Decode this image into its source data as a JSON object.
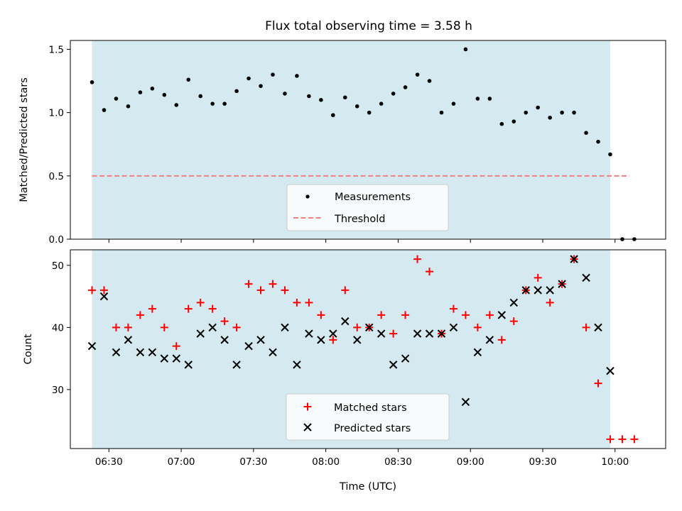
{
  "title": "Flux total observing time = 3.58 h",
  "xlabel": "Time (UTC)",
  "colors": {
    "observing_band": "#d4eaf0",
    "measurement": "#000000",
    "threshold": "#f08080",
    "matched": "#ff0000",
    "predicted": "#000000"
  },
  "chart_data": [
    {
      "type": "scatter",
      "ylabel": "Matched/Predicted stars",
      "xlim": [
        "06:14",
        "10:21"
      ],
      "ylim": [
        0,
        1.57
      ],
      "yticks": [
        0.0,
        0.5,
        1.0,
        1.5
      ],
      "ytick_labels": [
        "0.0",
        "0.5",
        "1.0",
        "1.5"
      ],
      "grid": false,
      "legend_position": "lower-center",
      "observing_window": [
        "06:23",
        "09:58"
      ],
      "series": [
        {
          "name": "Measurements",
          "marker": "dot",
          "x": [
            "06:23",
            "06:28",
            "06:33",
            "06:38",
            "06:43",
            "06:48",
            "06:53",
            "06:58",
            "07:03",
            "07:08",
            "07:13",
            "07:18",
            "07:23",
            "07:28",
            "07:33",
            "07:38",
            "07:43",
            "07:48",
            "07:53",
            "07:58",
            "08:03",
            "08:08",
            "08:13",
            "08:18",
            "08:23",
            "08:28",
            "08:33",
            "08:38",
            "08:43",
            "08:48",
            "08:53",
            "08:58",
            "09:03",
            "09:08",
            "09:13",
            "09:18",
            "09:23",
            "09:28",
            "09:33",
            "09:38",
            "09:43",
            "09:48",
            "09:53",
            "09:58",
            "10:03",
            "10:08"
          ],
          "y": [
            1.24,
            1.02,
            1.11,
            1.05,
            1.16,
            1.19,
            1.14,
            1.06,
            1.26,
            1.13,
            1.07,
            1.07,
            1.17,
            1.27,
            1.21,
            1.3,
            1.15,
            1.29,
            1.13,
            1.1,
            0.98,
            1.12,
            1.05,
            1.0,
            1.07,
            1.15,
            1.2,
            1.3,
            1.25,
            1.0,
            1.07,
            1.5,
            1.11,
            1.11,
            0.91,
            0.93,
            1.0,
            1.04,
            0.96,
            1.0,
            1.0,
            0.84,
            0.77,
            0.67,
            0.0,
            0.0
          ]
        },
        {
          "name": "Threshold",
          "marker": "dashed-line",
          "x": [
            "06:23",
            "10:06"
          ],
          "y": [
            0.5,
            0.5
          ]
        }
      ]
    },
    {
      "type": "scatter",
      "ylabel": "Count",
      "xlim": [
        "06:14",
        "10:21"
      ],
      "ylim": [
        20.5,
        52.5
      ],
      "yticks": [
        30,
        40,
        50
      ],
      "ytick_labels": [
        "30",
        "40",
        "50"
      ],
      "xticks": [
        "06:30",
        "07:00",
        "07:30",
        "08:00",
        "08:30",
        "09:00",
        "09:30",
        "10:00"
      ],
      "grid": false,
      "legend_position": "lower-center",
      "observing_window": [
        "06:23",
        "09:58"
      ],
      "series": [
        {
          "name": "Matched stars",
          "marker": "plus",
          "x": [
            "06:23",
            "06:28",
            "06:33",
            "06:38",
            "06:43",
            "06:48",
            "06:53",
            "06:58",
            "07:03",
            "07:08",
            "07:13",
            "07:18",
            "07:23",
            "07:28",
            "07:33",
            "07:38",
            "07:43",
            "07:48",
            "07:53",
            "07:58",
            "08:03",
            "08:08",
            "08:13",
            "08:18",
            "08:23",
            "08:28",
            "08:33",
            "08:38",
            "08:43",
            "08:48",
            "08:53",
            "08:58",
            "09:03",
            "09:08",
            "09:13",
            "09:18",
            "09:23",
            "09:28",
            "09:33",
            "09:38",
            "09:43",
            "09:48",
            "09:53",
            "09:58",
            "10:03",
            "10:08"
          ],
          "y": [
            46,
            46,
            40,
            40,
            42,
            43,
            40,
            37,
            43,
            44,
            43,
            41,
            40,
            47,
            46,
            47,
            46,
            44,
            44,
            42,
            38,
            46,
            40,
            40,
            42,
            39,
            42,
            51,
            49,
            39,
            43,
            42,
            40,
            42,
            38,
            41,
            46,
            48,
            44,
            47,
            51,
            40,
            31,
            22,
            22,
            22
          ]
        },
        {
          "name": "Predicted stars",
          "marker": "x",
          "x": [
            "06:23",
            "06:28",
            "06:33",
            "06:38",
            "06:43",
            "06:48",
            "06:53",
            "06:58",
            "07:03",
            "07:08",
            "07:13",
            "07:18",
            "07:23",
            "07:28",
            "07:33",
            "07:38",
            "07:43",
            "07:48",
            "07:53",
            "07:58",
            "08:03",
            "08:08",
            "08:13",
            "08:18",
            "08:23",
            "08:28",
            "08:33",
            "08:38",
            "08:43",
            "08:48",
            "08:53",
            "08:58",
            "09:03",
            "09:08",
            "09:13",
            "09:18",
            "09:23",
            "09:28",
            "09:33",
            "09:38",
            "09:43",
            "09:48",
            "09:53",
            "09:58"
          ],
          "y": [
            37,
            45,
            36,
            38,
            36,
            36,
            35,
            35,
            34,
            39,
            40,
            38,
            34,
            37,
            38,
            36,
            40,
            34,
            39,
            38,
            39,
            41,
            38,
            40,
            39,
            34,
            35,
            39,
            39,
            39,
            40,
            28,
            36,
            38,
            42,
            44,
            46,
            46,
            46,
            47,
            51,
            48,
            40,
            33
          ]
        }
      ]
    }
  ]
}
